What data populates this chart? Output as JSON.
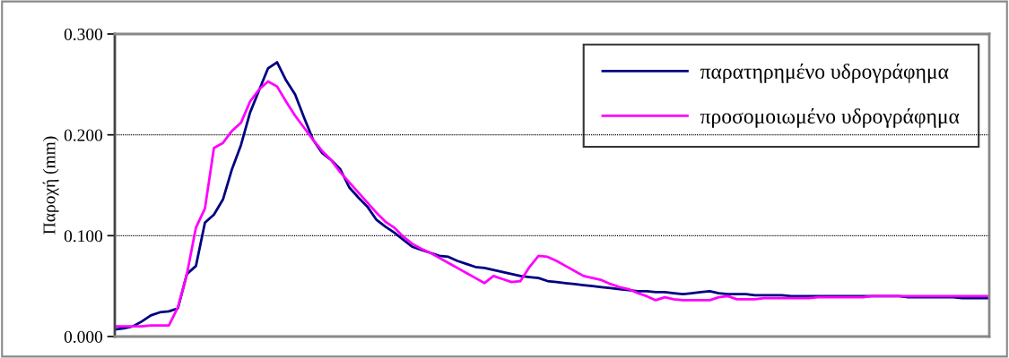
{
  "chart_data": {
    "type": "line",
    "ylabel": "Παροχή (mm)",
    "ylim": [
      0,
      0.3
    ],
    "yticks": [
      {
        "value": 0,
        "label": "0.000"
      },
      {
        "value": 0.1,
        "label": "0.100"
      },
      {
        "value": 0.2,
        "label": "0.200"
      },
      {
        "value": 0.3,
        "label": "0.300"
      }
    ],
    "grid": "y",
    "legend": "top right",
    "marker": "none",
    "line_style": "solid",
    "categories": [
      null,
      null,
      null,
      null,
      null,
      null,
      null,
      null,
      null,
      null,
      null,
      null,
      null,
      null,
      null,
      null,
      null,
      null,
      null,
      null,
      null,
      null,
      null,
      null,
      null,
      null,
      null,
      null,
      null,
      null,
      null,
      null,
      null,
      null,
      null,
      null,
      null,
      null,
      null,
      null,
      null,
      null,
      null,
      null,
      null,
      null,
      null,
      null,
      null,
      null,
      null,
      null,
      null,
      null,
      null,
      null,
      null,
      null,
      null,
      null,
      null,
      null,
      null,
      null,
      null,
      null,
      null,
      null,
      null,
      null,
      null,
      null,
      null,
      null,
      null,
      null,
      null,
      null,
      null,
      null,
      null,
      null,
      null,
      null,
      null,
      null,
      null,
      null,
      null,
      null,
      null,
      null,
      null,
      null,
      null,
      null,
      null,
      null
    ],
    "series": [
      {
        "name": "παρατηρημένο υδρογράφημα",
        "color": "#000080",
        "values": [
          0.007,
          0.008,
          0.01,
          0.015,
          0.021,
          0.024,
          0.025,
          0.028,
          0.062,
          0.07,
          0.113,
          0.121,
          0.136,
          0.166,
          0.19,
          0.222,
          0.244,
          0.266,
          0.272,
          0.254,
          0.24,
          0.217,
          0.195,
          0.182,
          0.175,
          0.166,
          0.148,
          0.138,
          0.129,
          0.116,
          0.109,
          0.103,
          0.096,
          0.089,
          0.086,
          0.083,
          0.08,
          0.079,
          0.075,
          0.072,
          0.069,
          0.068,
          0.066,
          0.064,
          0.062,
          0.06,
          0.059,
          0.058,
          0.055,
          0.054,
          0.053,
          0.052,
          0.051,
          0.05,
          0.049,
          0.048,
          0.047,
          0.046,
          0.045,
          0.045,
          0.044,
          0.044,
          0.043,
          0.042,
          0.043,
          0.044,
          0.045,
          0.043,
          0.042,
          0.042,
          0.042,
          0.041,
          0.041,
          0.041,
          0.041,
          0.04,
          0.04,
          0.04,
          0.04,
          0.04,
          0.04,
          0.04,
          0.04,
          0.04,
          0.04,
          0.04,
          0.04,
          0.04,
          0.039,
          0.039,
          0.039,
          0.039,
          0.039,
          0.039,
          0.038,
          0.038,
          0.038,
          0.038
        ]
      },
      {
        "name": "προσομοιωμένο υδρογράφημα",
        "color": "#ff00ff",
        "values": [
          0.01,
          0.01,
          0.01,
          0.01,
          0.011,
          0.011,
          0.011,
          0.029,
          0.062,
          0.108,
          0.127,
          0.187,
          0.192,
          0.204,
          0.212,
          0.233,
          0.245,
          0.253,
          0.248,
          0.233,
          0.219,
          0.207,
          0.195,
          0.184,
          0.175,
          0.163,
          0.153,
          0.143,
          0.133,
          0.123,
          0.114,
          0.108,
          0.099,
          0.092,
          0.087,
          0.083,
          0.078,
          0.073,
          0.068,
          0.063,
          0.058,
          0.053,
          0.06,
          0.057,
          0.054,
          0.055,
          0.069,
          0.08,
          0.079,
          0.075,
          0.07,
          0.065,
          0.06,
          0.058,
          0.056,
          0.052,
          0.049,
          0.047,
          0.043,
          0.04,
          0.036,
          0.039,
          0.037,
          0.036,
          0.036,
          0.036,
          0.036,
          0.039,
          0.04,
          0.037,
          0.037,
          0.037,
          0.038,
          0.038,
          0.038,
          0.038,
          0.038,
          0.038,
          0.039,
          0.039,
          0.039,
          0.039,
          0.039,
          0.039,
          0.04,
          0.04,
          0.04,
          0.04,
          0.04,
          0.04,
          0.04,
          0.04,
          0.04,
          0.04,
          0.04,
          0.04,
          0.04,
          0.04
        ]
      }
    ]
  }
}
